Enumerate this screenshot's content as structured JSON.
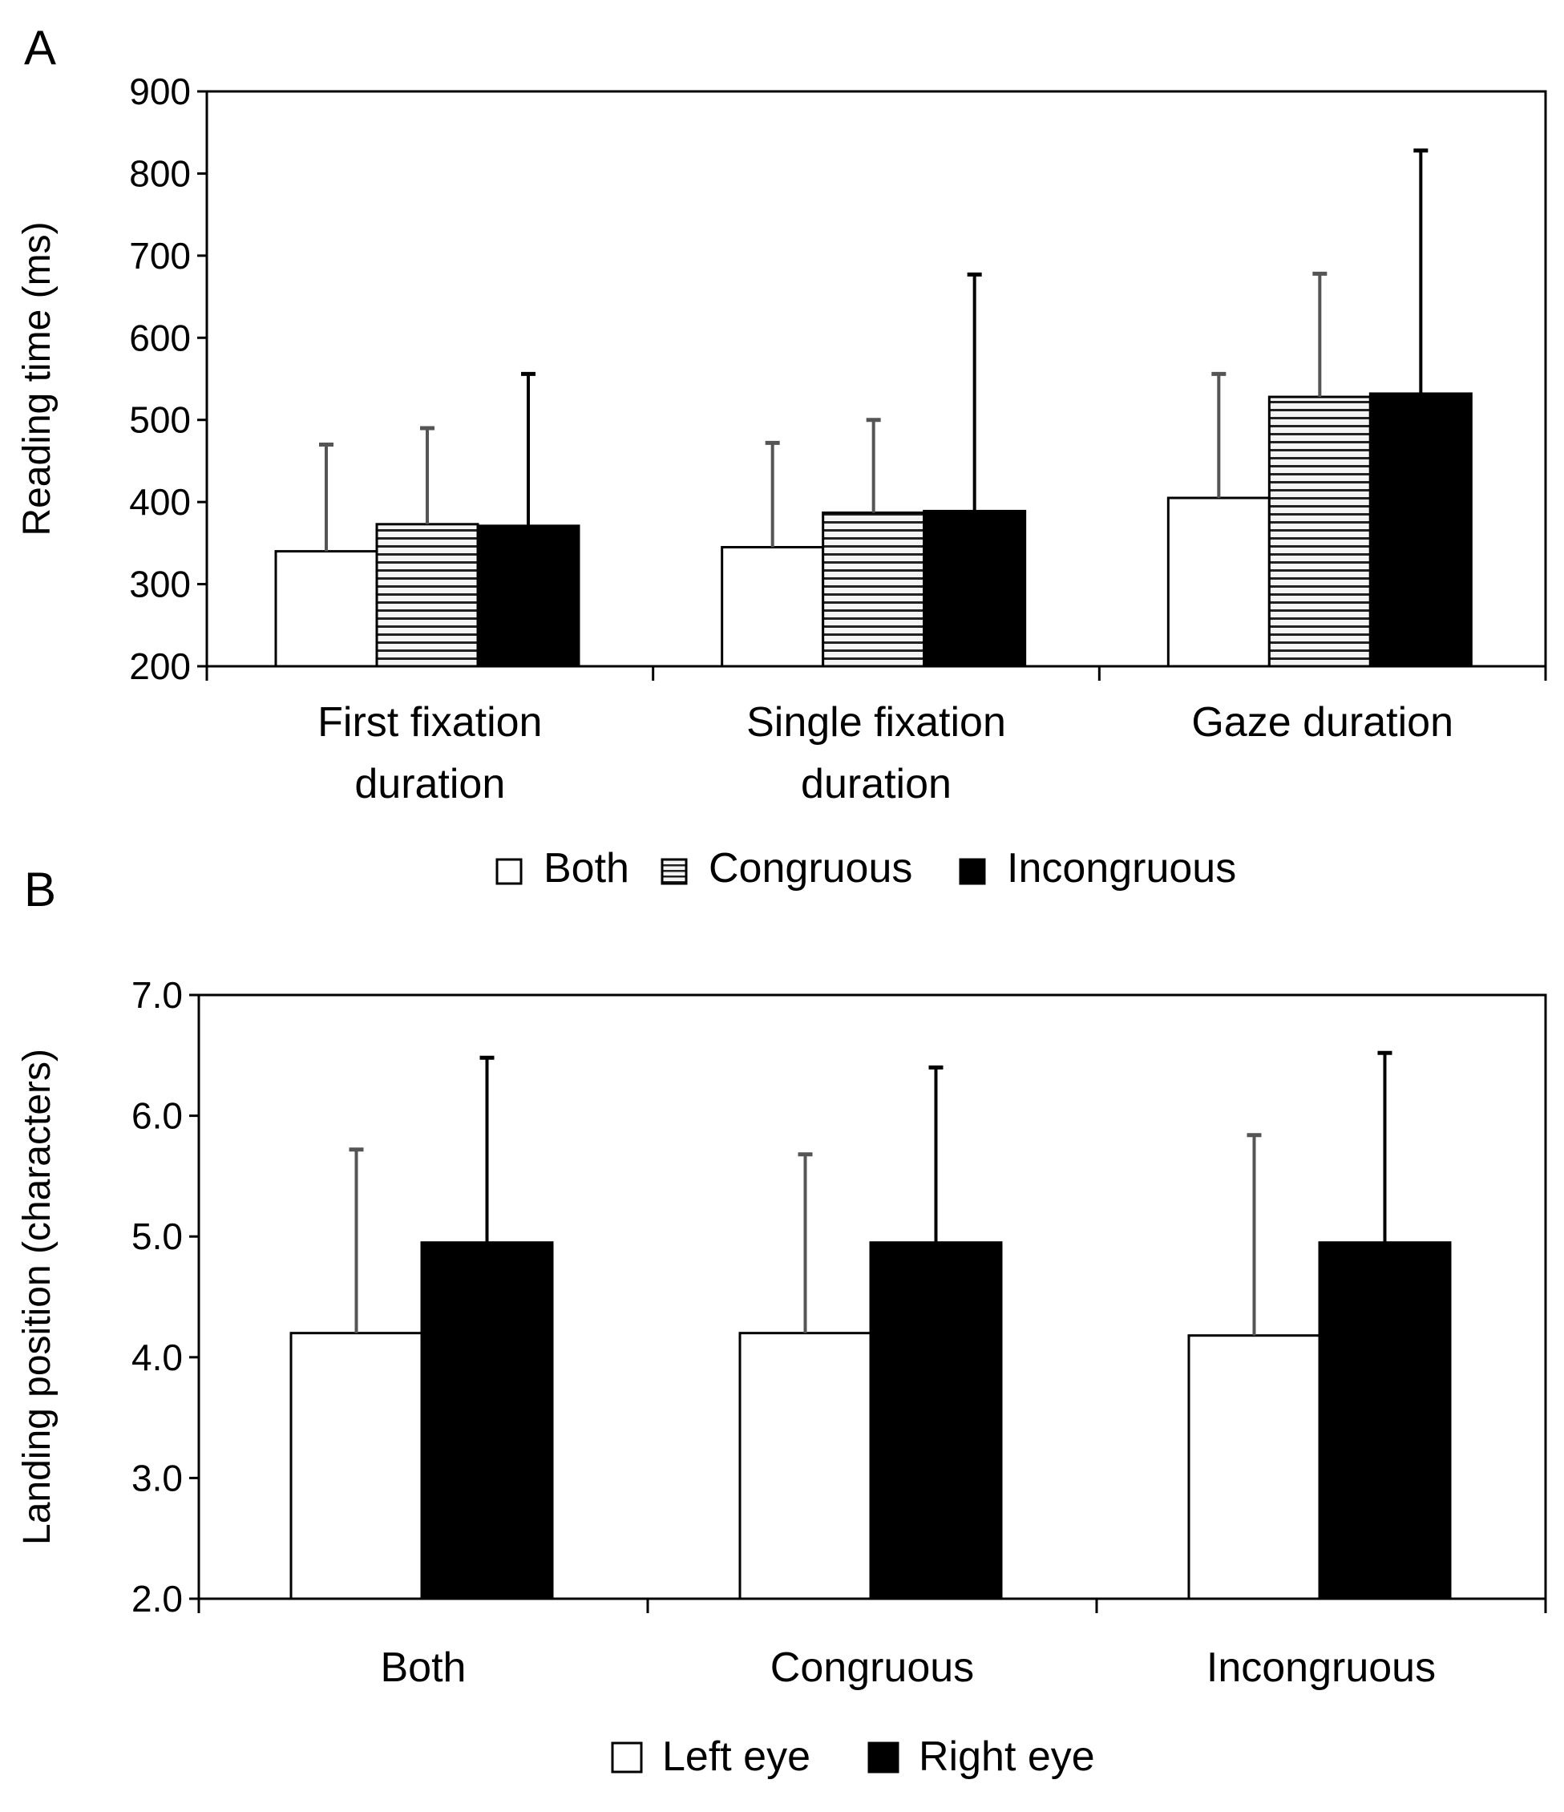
{
  "figure": {
    "panels": [
      "A",
      "B"
    ]
  },
  "colors": {
    "both": "#ffffff",
    "congruous_fill": "#f4f4f4",
    "congruous_stripe": "#222222",
    "incongruous": "#000000",
    "left_eye": "#ffffff",
    "right_eye": "#000000",
    "axis": "#000000",
    "error_bar": "#555555"
  },
  "chart_data": [
    {
      "panel": "A",
      "type": "bar",
      "title": "",
      "xlabel": "",
      "ylabel": "Reading time (ms)",
      "ylim": [
        200,
        900
      ],
      "yticks": [
        200,
        300,
        400,
        500,
        600,
        700,
        800,
        900
      ],
      "categories": [
        [
          "First fixation",
          "duration"
        ],
        [
          "Single fixation",
          "duration"
        ],
        [
          "Gaze duration"
        ]
      ],
      "series": [
        {
          "name": "Both",
          "pattern": "white",
          "values": [
            340,
            345,
            405
          ],
          "error_upper": [
            470,
            472,
            556
          ]
        },
        {
          "name": "Congruous",
          "pattern": "striped",
          "values": [
            373,
            387,
            528
          ],
          "error_upper": [
            490,
            500,
            678
          ]
        },
        {
          "name": "Incongruous",
          "pattern": "black",
          "values": [
            371,
            389,
            532
          ],
          "error_upper": [
            556,
            677,
            828
          ]
        }
      ],
      "legend": {
        "position": "bottom",
        "entries": [
          "Both",
          "Congruous",
          "Incongruous"
        ]
      }
    },
    {
      "panel": "B",
      "type": "bar",
      "title": "",
      "xlabel": "",
      "ylabel": "Landing position (characters)",
      "ylim": [
        2.0,
        7.0
      ],
      "yticks": [
        "2.0",
        "3.0",
        "4.0",
        "5.0",
        "6.0",
        "7.0"
      ],
      "categories": [
        [
          "Both"
        ],
        [
          "Congruous"
        ],
        [
          "Incongruous"
        ]
      ],
      "series": [
        {
          "name": "Left eye",
          "pattern": "white",
          "values": [
            4.2,
            4.2,
            4.18
          ],
          "error_upper": [
            5.72,
            5.68,
            5.84
          ]
        },
        {
          "name": "Right eye",
          "pattern": "black",
          "values": [
            4.95,
            4.95,
            4.95
          ],
          "error_upper": [
            6.48,
            6.4,
            6.52
          ]
        }
      ],
      "legend": {
        "position": "bottom",
        "entries": [
          "Left eye",
          "Right eye"
        ]
      }
    }
  ]
}
